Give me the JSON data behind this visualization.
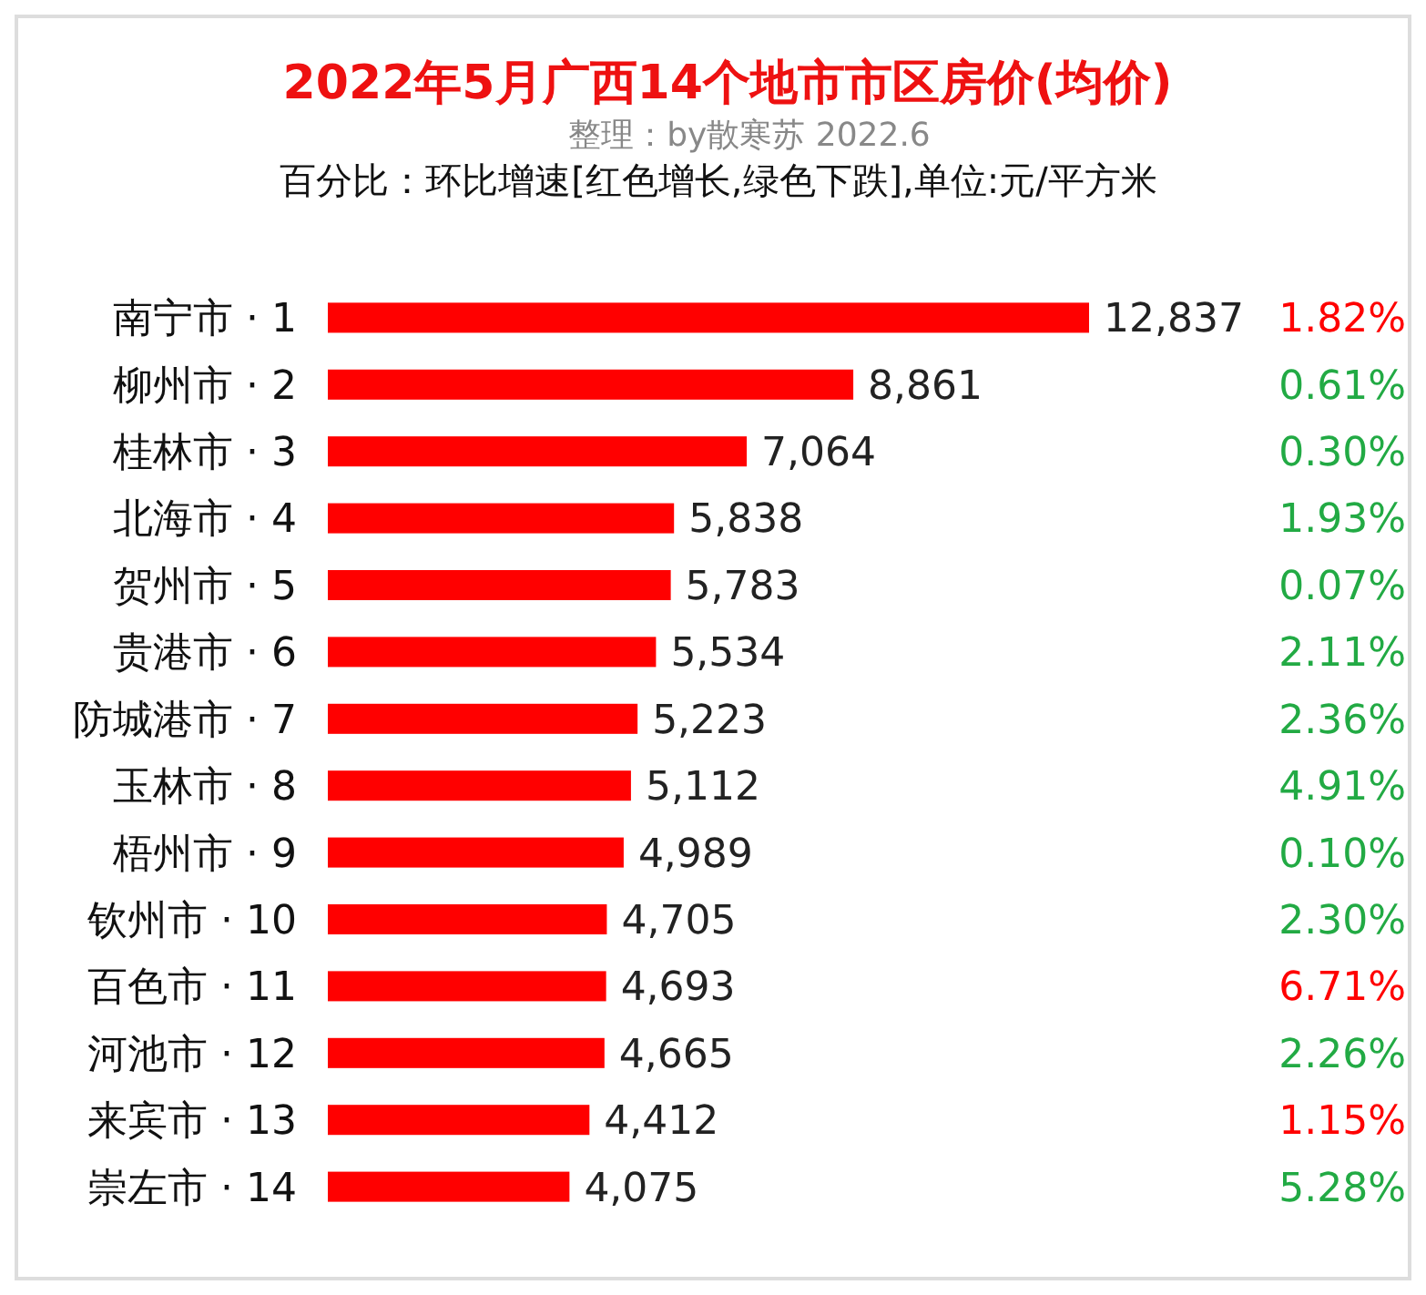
{
  "chart_data": [
    {
      "type": "bar",
      "orientation": "horizontal",
      "title": "2022年5月广西14个地市市区房价(均价)",
      "subtitle": "整理：by散寒苏 2022.6",
      "annotations": [
        "百分比：环比增速[红色增长,绿色下跌],单位:元/平方米"
      ],
      "categories": [
        "南宁市 · 1",
        "柳州市 · 2",
        "桂林市 · 3",
        "北海市 · 4",
        "贺州市 · 5",
        "贵港市 · 6",
        "防城港市 · 7",
        "玉林市 · 8",
        "梧州市 · 9",
        "钦州市 · 10",
        "百色市 · 11",
        "河池市 · 12",
        "来宾市 · 13",
        "崇左市 · 14"
      ],
      "color": "#ff0000",
      "values": [
        12837,
        8861,
        7064,
        5838,
        5783,
        5534,
        5223,
        5112,
        4989,
        4705,
        4693,
        4665,
        4412,
        4075
      ],
      "value_labels": [
        "12,837",
        "8,861",
        "7,064",
        "5,838",
        "5,783",
        "5,534",
        "5,223",
        "5,112",
        "4,989",
        "4,705",
        "4,693",
        "4,665",
        "4,412",
        "4,075"
      ]
    },
    {
      "type": "other",
      "values": [
        1.82,
        0.61,
        0.3,
        1.93,
        0.07,
        2.11,
        2.36,
        4.91,
        0.1,
        2.3,
        6.71,
        2.26,
        1.15,
        5.28
      ],
      "value_labels": [
        "1.82%",
        "0.61%",
        "0.30%",
        "1.93%",
        "0.07%",
        "2.11%",
        "2.36%",
        "4.91%",
        "0.10%",
        "2.30%",
        "6.71%",
        "2.26%",
        "1.15%",
        "5.28%"
      ],
      "colors": [
        "#ff0000",
        "#22aa44",
        "#22aa44",
        "#22aa44",
        "#22aa44",
        "#22aa44",
        "#22aa44",
        "#22aa44",
        "#22aa44",
        "#22aa44",
        "#ff0000",
        "#22aa44",
        "#ff0000",
        "#22aa44"
      ]
    }
  ]
}
